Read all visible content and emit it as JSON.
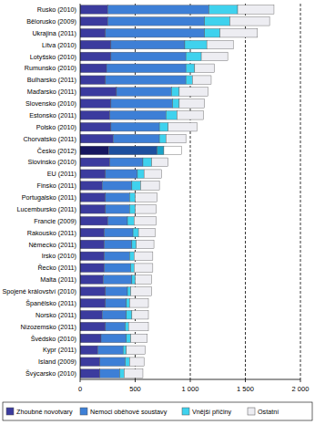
{
  "chart_data": {
    "type": "bar",
    "orientation": "horizontal",
    "stacked": true,
    "grid": true,
    "legend": "bottom",
    "categories": [
      "Rusko (2010)",
      "Bělorusko (2009)",
      "Ukrajina (2011)",
      "Litva (2010)",
      "Lotyšsko (2010)",
      "Rumunsko (2010)",
      "Bulharsko (2011)",
      "Maďarsko (2011)",
      "Slovensko (2010)",
      "Estonsko (2011)",
      "Polsko (2010)",
      "Chorvatsko (2011)",
      "Česko (2012)",
      "Slovinsko (2010)",
      "EU (2011)",
      "Finsko (2011)",
      "Portugalsko (2011)",
      "Lucembursko (2011)",
      "Francie (2009)",
      "Rakousko (2011)",
      "Německo (2011)",
      "Irsko (2010)",
      "Řecko (2011)",
      "Malta (2011)",
      "Spojené království (2010)",
      "Španělsko (2011)",
      "Norsko (2011)",
      "Nizozemsko (2011)",
      "Švédsko (2010)",
      "Kypr (2011)",
      "Island (2009)",
      "Švýcarsko (2010)"
    ],
    "xlim": [
      0,
      2000
    ],
    "xticks": [
      0,
      500,
      {
        "value": 1000,
        "label": "1 000"
      },
      {
        "value": 1500,
        "label": "1 500"
      },
      {
        "value": 2000,
        "label": "2 000"
      }
    ],
    "series": [
      {
        "name": "Zhoubné novotvary",
        "color": "#3b3b9e",
        "values": [
          250,
          250,
          230,
          280,
          280,
          240,
          230,
          330,
          280,
          270,
          280,
          300,
          260,
          270,
          230,
          200,
          230,
          230,
          250,
          220,
          220,
          220,
          220,
          210,
          230,
          230,
          200,
          230,
          190,
          160,
          180,
          180
        ],
        "colors": [
          "#3b3b9e",
          "#3b3b9e",
          "#3b3b9e",
          "#3b3b9e",
          "#3b3b9e",
          "#3b3b9e",
          "#3b3b9e",
          "#3b3b9e",
          "#3b3b9e",
          "#3b3b9e",
          "#3b3b9e",
          "#3b3b9e",
          "#161660",
          "#3b3b9e",
          "#3b3b9e",
          "#3b3b9e",
          "#3b3b9e",
          "#3b3b9e",
          "#3b3b9e",
          "#3b3b9e",
          "#3b3b9e",
          "#3b3b9e",
          "#3b3b9e",
          "#3b3b9e",
          "#3b3b9e",
          "#3b3b9e",
          "#3b3b9e",
          "#3b3b9e",
          "#3b3b9e",
          "#3b3b9e",
          "#3b3b9e",
          "#3b3b9e"
        ]
      },
      {
        "name": "Nemoci oběhové soustavy",
        "color": "#3d7fd6",
        "values": [
          920,
          880,
          900,
          670,
          680,
          720,
          730,
          500,
          560,
          510,
          440,
          420,
          440,
          300,
          290,
          270,
          220,
          220,
          180,
          260,
          250,
          230,
          240,
          260,
          200,
          190,
          220,
          180,
          230,
          230,
          230,
          180
        ],
        "colors": [
          "#3d7fd6",
          "#3d7fd6",
          "#3d7fd6",
          "#3d7fd6",
          "#3d7fd6",
          "#3d7fd6",
          "#3d7fd6",
          "#3d7fd6",
          "#3d7fd6",
          "#3d7fd6",
          "#3d7fd6",
          "#3d7fd6",
          "#1c4f9e",
          "#3d7fd6",
          "#3d7fd6",
          "#3d7fd6",
          "#3d7fd6",
          "#3d7fd6",
          "#3d7fd6",
          "#3d7fd6",
          "#3d7fd6",
          "#3d7fd6",
          "#3d7fd6",
          "#3d7fd6",
          "#3d7fd6",
          "#3d7fd6",
          "#3d7fd6",
          "#3d7fd6",
          "#3d7fd6",
          "#3d7fd6",
          "#3d7fd6",
          "#3d7fd6"
        ]
      },
      {
        "name": "Vnější příčiny",
        "color": "#3fd2ee",
        "values": [
          260,
          230,
          140,
          200,
          140,
          80,
          60,
          70,
          60,
          100,
          80,
          60,
          60,
          80,
          60,
          80,
          50,
          50,
          60,
          50,
          40,
          40,
          30,
          30,
          30,
          30,
          50,
          30,
          40,
          30,
          40,
          40
        ],
        "colors": [
          "#3fd2ee",
          "#3fd2ee",
          "#3fd2ee",
          "#3fd2ee",
          "#3fd2ee",
          "#3fd2ee",
          "#3fd2ee",
          "#3fd2ee",
          "#3fd2ee",
          "#3fd2ee",
          "#3fd2ee",
          "#3fd2ee",
          "#1aa3c8",
          "#3fd2ee",
          "#3fd2ee",
          "#3fd2ee",
          "#3fd2ee",
          "#3fd2ee",
          "#3fd2ee",
          "#3fd2ee",
          "#3fd2ee",
          "#3fd2ee",
          "#3fd2ee",
          "#3fd2ee",
          "#3fd2ee",
          "#3fd2ee",
          "#3fd2ee",
          "#3fd2ee",
          "#3fd2ee",
          "#3fd2ee",
          "#3fd2ee",
          "#3fd2ee"
        ]
      },
      {
        "name": "Ostatní",
        "color": "#ededf2",
        "values": [
          330,
          360,
          340,
          240,
          240,
          180,
          170,
          260,
          230,
          240,
          260,
          180,
          160,
          150,
          160,
          170,
          200,
          190,
          200,
          150,
          160,
          170,
          170,
          150,
          190,
          170,
          150,
          180,
          150,
          170,
          130,
          170
        ],
        "colors": [
          "#ededf2",
          "#ededf2",
          "#ededf2",
          "#ededf2",
          "#ededf2",
          "#ededf2",
          "#ededf2",
          "#ededf2",
          "#ededf2",
          "#ededf2",
          "#ededf2",
          "#ededf2",
          "#ffffff",
          "#ededf2",
          "#ededf2",
          "#ededf2",
          "#ededf2",
          "#ededf2",
          "#ededf2",
          "#ededf2",
          "#ededf2",
          "#ededf2",
          "#ededf2",
          "#ededf2",
          "#ededf2",
          "#ededf2",
          "#ededf2",
          "#ededf2",
          "#ededf2",
          "#ededf2",
          "#ededf2",
          "#ededf2"
        ]
      }
    ]
  }
}
